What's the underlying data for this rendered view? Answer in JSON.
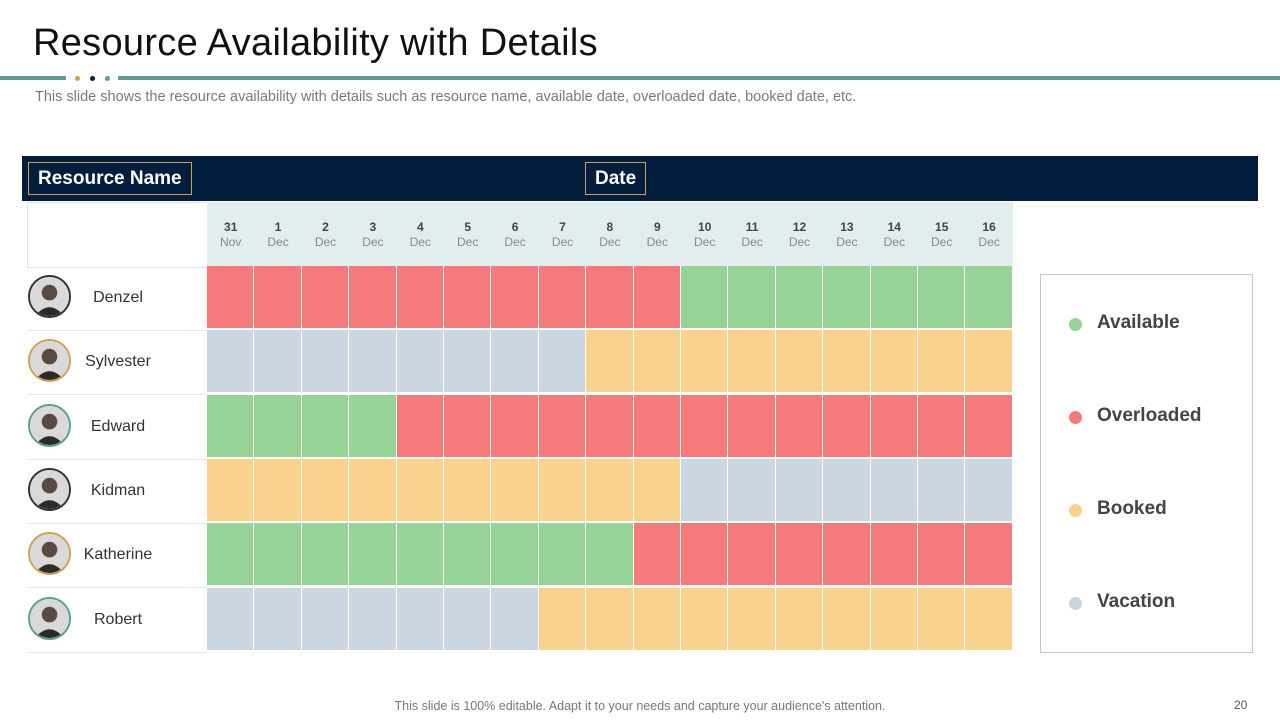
{
  "title": "Resource Availability with Details",
  "subtitle": "This slide shows the resource availability with details such as resource name, available date, overloaded date, booked date, etc.",
  "header": {
    "resource_label": "Resource Name",
    "date_label": "Date"
  },
  "dates": [
    {
      "day": "31",
      "month": "Nov"
    },
    {
      "day": "1",
      "month": "Dec"
    },
    {
      "day": "2",
      "month": "Dec"
    },
    {
      "day": "3",
      "month": "Dec"
    },
    {
      "day": "4",
      "month": "Dec"
    },
    {
      "day": "5",
      "month": "Dec"
    },
    {
      "day": "6",
      "month": "Dec"
    },
    {
      "day": "7",
      "month": "Dec"
    },
    {
      "day": "8",
      "month": "Dec"
    },
    {
      "day": "9",
      "month": "Dec"
    },
    {
      "day": "10",
      "month": "Dec"
    },
    {
      "day": "11",
      "month": "Dec"
    },
    {
      "day": "12",
      "month": "Dec"
    },
    {
      "day": "13",
      "month": "Dec"
    },
    {
      "day": "14",
      "month": "Dec"
    },
    {
      "day": "15",
      "month": "Dec"
    },
    {
      "day": "16",
      "month": "Dec"
    }
  ],
  "status_colors": {
    "available": "#97d396",
    "overloaded": "#f47a7b",
    "booked": "#f9d28d",
    "vacation": "#cbd6e1"
  },
  "people": [
    {
      "name": "Denzel",
      "avatar": "person-photo-icon",
      "ring": "#333333",
      "statuses": [
        "overloaded",
        "overloaded",
        "overloaded",
        "overloaded",
        "overloaded",
        "overloaded",
        "overloaded",
        "overloaded",
        "overloaded",
        "overloaded",
        "available",
        "available",
        "available",
        "available",
        "available",
        "available",
        "available"
      ]
    },
    {
      "name": "Sylvester",
      "avatar": "person-photo-icon",
      "ring": "#c9a352",
      "statuses": [
        "vacation",
        "vacation",
        "vacation",
        "vacation",
        "vacation",
        "vacation",
        "vacation",
        "vacation",
        "booked",
        "booked",
        "booked",
        "booked",
        "booked",
        "booked",
        "booked",
        "booked",
        "booked"
      ]
    },
    {
      "name": "Edward",
      "avatar": "person-photo-icon",
      "ring": "#5f9c91",
      "statuses": [
        "available",
        "available",
        "available",
        "available",
        "overloaded",
        "overloaded",
        "overloaded",
        "overloaded",
        "overloaded",
        "overloaded",
        "overloaded",
        "overloaded",
        "overloaded",
        "overloaded",
        "overloaded",
        "overloaded",
        "overloaded"
      ]
    },
    {
      "name": "Kidman",
      "avatar": "person-photo-icon",
      "ring": "#333333",
      "statuses": [
        "booked",
        "booked",
        "booked",
        "booked",
        "booked",
        "booked",
        "booked",
        "booked",
        "booked",
        "booked",
        "vacation",
        "vacation",
        "vacation",
        "vacation",
        "vacation",
        "vacation",
        "vacation"
      ]
    },
    {
      "name": "Katherine",
      "avatar": "person-photo-icon",
      "ring": "#c9a352",
      "statuses": [
        "available",
        "available",
        "available",
        "available",
        "available",
        "available",
        "available",
        "available",
        "available",
        "overloaded",
        "overloaded",
        "overloaded",
        "overloaded",
        "overloaded",
        "overloaded",
        "overloaded",
        "overloaded"
      ]
    },
    {
      "name": "Robert",
      "avatar": "person-photo-icon",
      "ring": "#5f9c91",
      "statuses": [
        "vacation",
        "vacation",
        "vacation",
        "vacation",
        "vacation",
        "vacation",
        "vacation",
        "booked",
        "booked",
        "booked",
        "booked",
        "booked",
        "booked",
        "booked",
        "booked",
        "booked",
        "booked"
      ]
    }
  ],
  "legend": [
    {
      "key": "available",
      "label": "Available"
    },
    {
      "key": "overloaded",
      "label": "Overloaded"
    },
    {
      "key": "booked",
      "label": "Booked"
    },
    {
      "key": "vacation",
      "label": "Vacation"
    }
  ],
  "footer": "This slide is 100% editable. Adapt it to your needs and capture your audience's attention.",
  "page_number": "20",
  "accent_colors": {
    "teal": "#5f9c91",
    "gold": "#c9a352",
    "navy": "#031d3e"
  }
}
